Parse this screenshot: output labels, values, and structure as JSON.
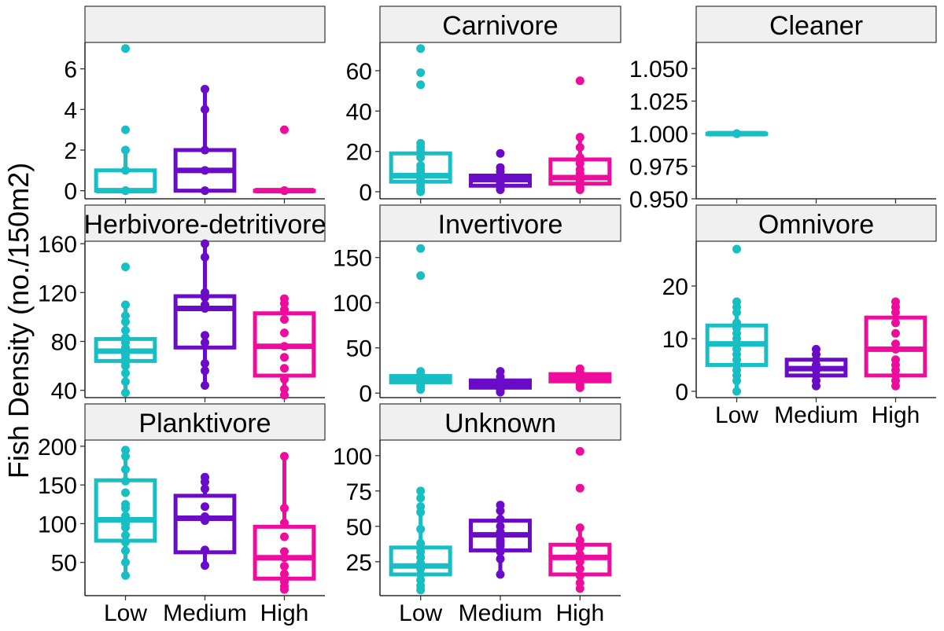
{
  "figure": {
    "ylabel": "Fish Density (no./150m2)",
    "colors": {
      "Low": "#17BEC4",
      "Medium": "#6A0CC7",
      "High": "#EE0C9C"
    },
    "strip_fill": "#F0F0F0"
  },
  "chart_data": [
    {
      "type": "box",
      "facet": "",
      "categories": [
        "Low",
        "Medium",
        "High"
      ],
      "xlabels_shown": false,
      "ylim": [
        -0.4,
        7.3
      ],
      "yticks": [
        0,
        2,
        4,
        6
      ],
      "yticklabels": [
        "0",
        "2",
        "4",
        "6"
      ],
      "boxes": [
        {
          "group": "Low",
          "q1": 0,
          "median": 0,
          "q3": 1,
          "lower": 0,
          "upper": 2
        },
        {
          "group": "Medium",
          "q1": 0,
          "median": 1,
          "q3": 2,
          "lower": 0,
          "upper": 5
        },
        {
          "group": "High",
          "q1": 0,
          "median": 0,
          "q3": 0,
          "lower": 0,
          "upper": 0
        }
      ],
      "points": [
        {
          "group": "Low",
          "values": [
            7,
            3,
            2,
            1,
            0,
            0,
            0
          ]
        },
        {
          "group": "Medium",
          "values": [
            5,
            4,
            2,
            1,
            0
          ]
        },
        {
          "group": "High",
          "values": [
            3,
            0,
            0,
            0
          ]
        }
      ]
    },
    {
      "type": "box",
      "facet": "Carnivore",
      "categories": [
        "Low",
        "Medium",
        "High"
      ],
      "xlabels_shown": false,
      "ylim": [
        -3.5,
        74
      ],
      "yticks": [
        0,
        20,
        40,
        60
      ],
      "yticklabels": [
        "0",
        "20",
        "40",
        "60"
      ],
      "boxes": [
        {
          "group": "Low",
          "q1": 5,
          "median": 8,
          "q3": 19,
          "lower": 0,
          "upper": 24
        },
        {
          "group": "Medium",
          "q1": 3,
          "median": 6,
          "q3": 8,
          "lower": 1,
          "upper": 12
        },
        {
          "group": "High",
          "q1": 4,
          "median": 7,
          "q3": 16,
          "lower": 1,
          "upper": 27
        }
      ],
      "points": [
        {
          "group": "Low",
          "values": [
            71,
            59,
            53,
            24,
            22,
            20,
            17,
            13,
            11,
            9,
            8,
            7,
            6,
            5,
            3,
            1,
            0
          ]
        },
        {
          "group": "Medium",
          "values": [
            19,
            12,
            10,
            8,
            7,
            6,
            5,
            4,
            3,
            2,
            1
          ]
        },
        {
          "group": "High",
          "values": [
            55,
            27,
            22,
            17,
            14,
            11,
            9,
            7,
            5,
            4,
            2,
            1
          ]
        }
      ]
    },
    {
      "type": "box",
      "facet": "Cleaner",
      "categories": [
        "Low",
        "Medium",
        "High"
      ],
      "xlabels_shown": false,
      "ylim": [
        0.95,
        1.07
      ],
      "yticks": [
        0.95,
        0.975,
        1.0,
        1.025,
        1.05
      ],
      "yticklabels": [
        "0.950",
        "0.975",
        "1.000",
        "1.025",
        "1.050"
      ],
      "boxes": [
        {
          "group": "Low",
          "q1": 1,
          "median": 1,
          "q3": 1,
          "lower": 1,
          "upper": 1
        }
      ],
      "points": [
        {
          "group": "Low",
          "values": [
            1,
            1,
            1
          ]
        }
      ]
    },
    {
      "type": "box",
      "facet": "Herbivore-detritivore",
      "categories": [
        "Low",
        "Medium",
        "High"
      ],
      "xlabels_shown": false,
      "ylim": [
        34,
        162
      ],
      "yticks": [
        40,
        80,
        120,
        160
      ],
      "yticklabels": [
        "40",
        "80",
        "120",
        "160"
      ],
      "boxes": [
        {
          "group": "Low",
          "q1": 64,
          "median": 72,
          "q3": 82,
          "lower": 38,
          "upper": 110
        },
        {
          "group": "Medium",
          "q1": 75,
          "median": 107,
          "q3": 117,
          "lower": 44,
          "upper": 160
        },
        {
          "group": "High",
          "q1": 52,
          "median": 76,
          "q3": 103,
          "lower": 36,
          "upper": 115
        }
      ],
      "points": [
        {
          "group": "Low",
          "values": [
            141,
            110,
            101,
            96,
            89,
            83,
            79,
            75,
            72,
            69,
            66,
            63,
            60,
            54,
            47,
            38
          ]
        },
        {
          "group": "Medium",
          "values": [
            160,
            149,
            120,
            116,
            110,
            107,
            85,
            79,
            62,
            56,
            44
          ]
        },
        {
          "group": "High",
          "values": [
            115,
            111,
            106,
            98,
            87,
            76,
            67,
            58,
            49,
            41,
            36
          ]
        }
      ]
    },
    {
      "type": "box",
      "facet": "Invertivore",
      "categories": [
        "Low",
        "Medium",
        "High"
      ],
      "xlabels_shown": false,
      "ylim": [
        -5,
        168
      ],
      "yticks": [
        0,
        50,
        100,
        150
      ],
      "yticklabels": [
        "0",
        "50",
        "100",
        "150"
      ],
      "boxes": [
        {
          "group": "Low",
          "q1": 12,
          "median": 15,
          "q3": 19,
          "lower": 4,
          "upper": 24
        },
        {
          "group": "Medium",
          "q1": 6,
          "median": 10,
          "q3": 14,
          "lower": 1,
          "upper": 24
        },
        {
          "group": "High",
          "q1": 13,
          "median": 16,
          "q3": 21,
          "lower": 6,
          "upper": 27
        }
      ],
      "points": [
        {
          "group": "Low",
          "values": [
            160,
            130,
            24,
            20,
            17,
            14,
            11,
            8,
            6,
            4
          ]
        },
        {
          "group": "Medium",
          "values": [
            24,
            18,
            14,
            11,
            9,
            7,
            5,
            3,
            1
          ]
        },
        {
          "group": "High",
          "values": [
            27,
            23,
            20,
            17,
            15,
            12,
            9,
            6
          ]
        }
      ]
    },
    {
      "type": "box",
      "facet": "Omnivore",
      "categories": [
        "Low",
        "Medium",
        "High"
      ],
      "xlabels_shown": true,
      "ylim": [
        -1.2,
        28.5
      ],
      "yticks": [
        0,
        10,
        20
      ],
      "yticklabels": [
        "0",
        "10",
        "20"
      ],
      "boxes": [
        {
          "group": "Low",
          "q1": 5,
          "median": 9,
          "q3": 12.5,
          "lower": 0,
          "upper": 17
        },
        {
          "group": "Medium",
          "q1": 3,
          "median": 4.3,
          "q3": 6,
          "lower": 1,
          "upper": 8
        },
        {
          "group": "High",
          "q1": 3,
          "median": 8,
          "q3": 14,
          "lower": 1,
          "upper": 17
        }
      ],
      "points": [
        {
          "group": "Low",
          "values": [
            27,
            17,
            16,
            15,
            13,
            12,
            11,
            10,
            9,
            8,
            7,
            6,
            5,
            4,
            3,
            2,
            0
          ]
        },
        {
          "group": "Medium",
          "values": [
            8,
            7,
            6,
            5,
            4,
            3,
            2,
            1
          ]
        },
        {
          "group": "High",
          "values": [
            17,
            16,
            15,
            13,
            11,
            9,
            8,
            6,
            5,
            4,
            3,
            2,
            1
          ]
        }
      ]
    },
    {
      "type": "box",
      "facet": "Planktivore",
      "categories": [
        "Low",
        "Medium",
        "High"
      ],
      "xlabels_shown": true,
      "ylim": [
        7,
        208
      ],
      "yticks": [
        50,
        100,
        150,
        200
      ],
      "yticklabels": [
        "50",
        "100",
        "150",
        "200"
      ],
      "boxes": [
        {
          "group": "Low",
          "q1": 78,
          "median": 105,
          "q3": 156,
          "lower": 33,
          "upper": 195
        },
        {
          "group": "Medium",
          "q1": 63,
          "median": 107,
          "q3": 136,
          "lower": 46,
          "upper": 160
        },
        {
          "group": "High",
          "q1": 29,
          "median": 56,
          "q3": 96,
          "lower": 15,
          "upper": 187
        }
      ],
      "points": [
        {
          "group": "Low",
          "values": [
            195,
            187,
            170,
            155,
            140,
            125,
            120,
            110,
            104,
            100,
            95,
            85,
            76,
            65,
            50,
            33
          ]
        },
        {
          "group": "Medium",
          "values": [
            160,
            154,
            145,
            122,
            109,
            104,
            66,
            46
          ]
        },
        {
          "group": "High",
          "values": [
            187,
            120,
            101,
            83,
            64,
            56,
            45,
            35,
            25,
            19,
            15
          ]
        }
      ]
    },
    {
      "type": "box",
      "facet": "Unknown",
      "categories": [
        "Low",
        "Medium",
        "High"
      ],
      "xlabels_shown": true,
      "ylim": [
        1,
        111
      ],
      "yticks": [
        25,
        50,
        75,
        100
      ],
      "yticklabels": [
        "25",
        "50",
        "75",
        "100"
      ],
      "boxes": [
        {
          "group": "Low",
          "q1": 16,
          "median": 22,
          "q3": 35,
          "lower": 5,
          "upper": 64
        },
        {
          "group": "Medium",
          "q1": 33,
          "median": 44,
          "q3": 54,
          "lower": 16,
          "upper": 65
        },
        {
          "group": "High",
          "q1": 16,
          "median": 28,
          "q3": 37,
          "lower": 5,
          "upper": 49
        }
      ],
      "points": [
        {
          "group": "Low",
          "values": [
            75,
            70,
            64,
            60,
            48,
            38,
            32,
            28,
            24,
            20,
            16,
            12,
            8,
            5
          ]
        },
        {
          "group": "Medium",
          "values": [
            65,
            61,
            55,
            50,
            46,
            43,
            40,
            38,
            36,
            32,
            27,
            16
          ]
        },
        {
          "group": "High",
          "values": [
            103,
            77,
            49,
            40,
            35,
            30,
            25,
            20,
            15,
            10,
            6
          ]
        }
      ]
    }
  ]
}
